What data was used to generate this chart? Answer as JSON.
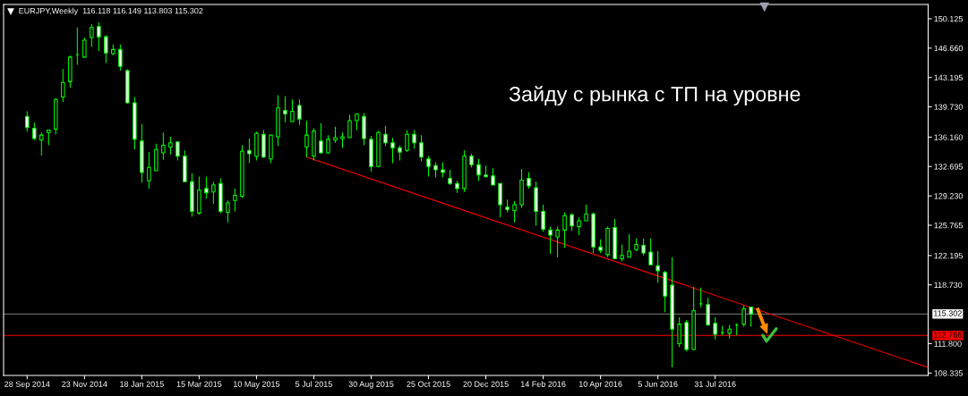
{
  "chart_data": {
    "type": "candlestick",
    "title": "EURJPY,Weekly  116.118 116.149 113.803 115.302",
    "annotations": [
      "Зайду с рынка с ТП на уровне"
    ],
    "x": [
      "2014-09-28",
      "2014-10-05",
      "2014-10-12",
      "2014-10-19",
      "2014-10-26",
      "2014-11-02",
      "2014-11-09",
      "2014-11-16",
      "2014-11-23",
      "2014-11-30",
      "2014-12-07",
      "2014-12-14",
      "2014-12-21",
      "2014-12-28",
      "2015-01-04",
      "2015-01-11",
      "2015-01-18",
      "2015-01-25",
      "2015-02-01",
      "2015-02-08",
      "2015-02-15",
      "2015-02-22",
      "2015-03-01",
      "2015-03-08",
      "2015-03-15",
      "2015-03-22",
      "2015-03-29",
      "2015-04-05",
      "2015-04-12",
      "2015-04-19",
      "2015-04-26",
      "2015-05-03",
      "2015-05-10",
      "2015-05-17",
      "2015-05-24",
      "2015-05-31",
      "2015-06-07",
      "2015-06-14",
      "2015-06-21",
      "2015-06-28",
      "2015-07-05",
      "2015-07-12",
      "2015-07-19",
      "2015-07-26",
      "2015-08-02",
      "2015-08-09",
      "2015-08-16",
      "2015-08-23",
      "2015-08-30",
      "2015-09-06",
      "2015-09-13",
      "2015-09-20",
      "2015-09-27",
      "2015-10-04",
      "2015-10-11",
      "2015-10-18",
      "2015-10-25",
      "2015-11-01",
      "2015-11-08",
      "2015-11-15",
      "2015-11-22",
      "2015-11-29",
      "2015-12-06",
      "2015-12-13",
      "2015-12-20",
      "2015-12-27",
      "2016-01-03",
      "2016-01-10",
      "2016-01-17",
      "2016-01-24",
      "2016-01-31",
      "2016-02-07",
      "2016-02-14",
      "2016-02-21",
      "2016-02-28",
      "2016-03-06",
      "2016-03-13",
      "2016-03-20",
      "2016-03-27",
      "2016-04-03",
      "2016-04-10",
      "2016-04-17",
      "2016-04-24",
      "2016-05-01",
      "2016-05-08",
      "2016-05-15",
      "2016-05-22",
      "2016-05-29",
      "2016-06-05",
      "2016-06-12",
      "2016-06-19",
      "2016-06-26",
      "2016-07-03",
      "2016-07-10",
      "2016-07-17",
      "2016-07-24",
      "2016-07-31",
      "2016-08-07",
      "2016-08-14",
      "2016-08-21",
      "2016-08-28",
      "2016-09-04"
    ],
    "ohlc": [
      [
        138.6,
        139.2,
        136.8,
        137.3
      ],
      [
        137.2,
        137.9,
        135.8,
        136.0
      ],
      [
        135.8,
        136.7,
        134.0,
        136.4
      ],
      [
        136.7,
        137.0,
        135.2,
        137.0
      ],
      [
        137.1,
        140.8,
        136.5,
        140.6
      ],
      [
        140.9,
        144.2,
        140.3,
        142.6
      ],
      [
        142.7,
        145.8,
        142.0,
        145.6
      ],
      [
        145.9,
        149.1,
        144.7,
        145.9
      ],
      [
        145.6,
        147.9,
        145.5,
        147.6
      ],
      [
        147.9,
        149.5,
        146.8,
        149.1
      ],
      [
        149.2,
        149.7,
        146.3,
        148.0
      ],
      [
        148.0,
        148.2,
        144.9,
        146.1
      ],
      [
        146.0,
        147.1,
        145.8,
        146.5
      ],
      [
        146.5,
        147.1,
        144.0,
        144.5
      ],
      [
        144.0,
        144.2,
        140.1,
        140.2
      ],
      [
        140.2,
        140.9,
        134.7,
        135.9
      ],
      [
        135.7,
        137.7,
        130.8,
        132.0
      ],
      [
        131.0,
        134.4,
        130.1,
        132.6
      ],
      [
        132.2,
        135.4,
        132.2,
        134.7
      ],
      [
        134.3,
        136.7,
        133.5,
        135.2
      ],
      [
        135.0,
        136.2,
        134.1,
        135.5
      ],
      [
        135.6,
        135.6,
        133.4,
        133.9
      ],
      [
        133.9,
        134.6,
        130.9,
        130.9
      ],
      [
        130.9,
        131.9,
        126.8,
        127.4
      ],
      [
        127.2,
        131.5,
        127.0,
        129.9
      ],
      [
        130.1,
        131.5,
        128.9,
        129.6
      ],
      [
        129.7,
        130.9,
        128.3,
        130.5
      ],
      [
        130.7,
        131.3,
        127.2,
        127.4
      ],
      [
        127.3,
        128.7,
        126.1,
        128.4
      ],
      [
        128.7,
        130.1,
        127.4,
        129.3
      ],
      [
        129.2,
        135.2,
        129.0,
        134.5
      ],
      [
        134.6,
        136.0,
        133.1,
        134.2
      ],
      [
        133.9,
        136.8,
        133.4,
        136.6
      ],
      [
        136.5,
        137.0,
        133.7,
        133.8
      ],
      [
        133.6,
        136.4,
        133.1,
        136.4
      ],
      [
        136.2,
        141.1,
        135.1,
        139.6
      ],
      [
        139.3,
        141.0,
        137.9,
        138.9
      ],
      [
        138.0,
        140.6,
        138.0,
        139.2
      ],
      [
        139.9,
        140.6,
        137.6,
        138.3
      ],
      [
        135.0,
        138.1,
        133.8,
        136.4
      ],
      [
        133.9,
        137.2,
        133.4,
        136.9
      ],
      [
        135.7,
        137.8,
        134.2,
        134.3
      ],
      [
        134.3,
        136.4,
        134.2,
        135.9
      ],
      [
        135.8,
        137.4,
        135.5,
        136.1
      ],
      [
        136.0,
        136.7,
        134.9,
        136.2
      ],
      [
        136.1,
        138.8,
        136.1,
        138.1
      ],
      [
        138.1,
        138.9,
        137.0,
        138.9
      ],
      [
        138.6,
        139.0,
        135.2,
        136.0
      ],
      [
        135.9,
        136.3,
        132.1,
        132.7
      ],
      [
        132.7,
        136.9,
        132.6,
        136.7
      ],
      [
        136.5,
        137.5,
        135.1,
        135.5
      ],
      [
        135.5,
        136.1,
        133.1,
        134.9
      ],
      [
        134.9,
        135.2,
        133.4,
        134.4
      ],
      [
        134.6,
        137.0,
        134.4,
        136.5
      ],
      [
        136.5,
        137.0,
        134.8,
        135.5
      ],
      [
        135.5,
        136.4,
        133.3,
        133.8
      ],
      [
        133.6,
        133.9,
        131.5,
        132.7
      ],
      [
        132.8,
        133.2,
        131.4,
        132.3
      ],
      [
        132.3,
        133.2,
        131.4,
        132.0
      ],
      [
        131.3,
        132.3,
        130.5,
        130.7
      ],
      [
        130.7,
        131.0,
        129.6,
        130.1
      ],
      [
        130.1,
        134.6,
        129.7,
        133.9
      ],
      [
        133.9,
        134.2,
        132.6,
        132.9
      ],
      [
        132.9,
        133.6,
        131.0,
        131.7
      ],
      [
        131.7,
        132.8,
        131.5,
        131.5
      ],
      [
        131.6,
        132.5,
        130.5,
        130.5
      ],
      [
        130.7,
        130.7,
        126.7,
        128.2
      ],
      [
        127.9,
        128.8,
        127.3,
        127.6
      ],
      [
        127.5,
        128.6,
        126.1,
        128.2
      ],
      [
        128.2,
        132.4,
        127.8,
        131.1
      ],
      [
        131.3,
        132.0,
        130.1,
        130.4
      ],
      [
        130.2,
        130.9,
        125.7,
        127.4
      ],
      [
        127.4,
        128.2,
        125.0,
        125.3
      ],
      [
        125.2,
        125.6,
        122.4,
        124.6
      ],
      [
        124.4,
        125.6,
        122.0,
        125.2
      ],
      [
        125.2,
        127.3,
        123.1,
        126.9
      ],
      [
        127.0,
        127.2,
        125.1,
        125.7
      ],
      [
        125.6,
        126.7,
        124.6,
        126.3
      ],
      [
        126.3,
        128.2,
        126.3,
        127.1
      ],
      [
        127.1,
        127.3,
        122.5,
        123.2
      ],
      [
        123.2,
        124.1,
        122.5,
        122.8
      ],
      [
        122.3,
        125.6,
        122.0,
        125.4
      ],
      [
        125.5,
        126.5,
        121.8,
        121.8
      ],
      [
        121.8,
        123.5,
        121.5,
        122.2
      ],
      [
        122.0,
        124.7,
        122.0,
        122.7
      ],
      [
        122.9,
        124.2,
        122.7,
        123.5
      ],
      [
        123.4,
        124.2,
        122.2,
        122.5
      ],
      [
        122.6,
        124.2,
        121.1,
        121.1
      ],
      [
        121.0,
        122.7,
        119.0,
        120.4
      ],
      [
        120.2,
        120.4,
        115.5,
        117.4
      ],
      [
        118.7,
        122.0,
        109.0,
        113.5
      ],
      [
        111.8,
        114.9,
        111.4,
        114.1
      ],
      [
        114.3,
        114.6,
        110.9,
        111.1
      ],
      [
        111.1,
        118.5,
        111.0,
        115.7
      ],
      [
        116.5,
        118.4,
        116.1,
        116.5
      ],
      [
        116.4,
        117.2,
        113.9,
        114.0
      ],
      [
        114.2,
        114.9,
        112.3,
        112.9
      ],
      [
        113.1,
        113.9,
        112.8,
        113.1
      ],
      [
        113.0,
        114.0,
        112.4,
        113.5
      ],
      [
        114.0,
        114.2,
        112.8,
        114.0
      ],
      [
        114.1,
        116.3,
        113.8,
        115.9
      ],
      [
        116.118,
        116.149,
        113.803,
        115.302
      ]
    ],
    "color": "#00ff00",
    "colors": [
      "#ffffff",
      "#ffffff",
      "#000000",
      "#000000",
      "#000000",
      "#000000",
      "#000000",
      "#00ff00",
      "#000000",
      "#000000",
      "#ffffff",
      "#ffffff",
      "#000000",
      "#ffffff",
      "#ffffff",
      "#ffffff",
      "#ffffff",
      "#000000",
      "#000000",
      "#000000",
      "#000000",
      "#ffffff",
      "#ffffff",
      "#ffffff",
      "#000000",
      "#ffffff",
      "#000000",
      "#ffffff",
      "#000000",
      "#000000",
      "#000000",
      "#ffffff",
      "#000000",
      "#ffffff",
      "#000000",
      "#000000",
      "#ffffff",
      "#000000",
      "#ffffff",
      "#000000",
      "#000000",
      "#ffffff",
      "#000000",
      "#000000",
      "#000000",
      "#000000",
      "#000000",
      "#ffffff",
      "#ffffff",
      "#000000",
      "#ffffff",
      "#ffffff",
      "#ffffff",
      "#000000",
      "#ffffff",
      "#ffffff",
      "#ffffff",
      "#ffffff",
      "#ffffff",
      "#ffffff",
      "#ffffff",
      "#000000",
      "#ffffff",
      "#ffffff",
      "#ffffff",
      "#ffffff",
      "#ffffff",
      "#ffffff",
      "#000000",
      "#000000",
      "#ffffff",
      "#ffffff",
      "#ffffff",
      "#ffffff",
      "#000000",
      "#000000",
      "#ffffff",
      "#000000",
      "#000000",
      "#ffffff",
      "#ffffff",
      "#000000",
      "#ffffff",
      "#000000",
      "#000000",
      "#000000",
      "#ffffff",
      "#ffffff",
      "#ffffff",
      "#ffffff",
      "#ffffff",
      "#000000",
      "#ffffff",
      "#000000",
      "#00ff00",
      "#ffffff",
      "#ffffff",
      "#00ff00",
      "#000000",
      "#00ff00",
      "#000000",
      "#ffffff"
    ],
    "series": [
      {
        "type": "line",
        "x": [
          "2015-06-28",
          "2017-02-24"
        ],
        "values": [
          133.8,
          109.0
        ],
        "color": "#ff0000"
      }
    ],
    "ref_lines": [
      {
        "axis": "y",
        "value": 115.302,
        "label": "115.302",
        "color": "#808080"
      },
      {
        "axis": "y",
        "value": 112.766,
        "label": "112.766",
        "color": "#ff0000"
      }
    ],
    "xlim": [
      "2014-09-05",
      "2017-02-24"
    ],
    "xticks": [
      {
        "value": "2014-09-28",
        "label": "28 Sep 2014"
      },
      {
        "value": "2014-11-23",
        "label": "23 Nov 2014"
      },
      {
        "value": "2015-01-18",
        "label": "18 Jan 2015"
      },
      {
        "value": "2015-03-15",
        "label": "15 Mar 2015"
      },
      {
        "value": "2015-05-10",
        "label": "10 May 2015"
      },
      {
        "value": "2015-07-05",
        "label": "5 Jul 2015"
      },
      {
        "value": "2015-08-30",
        "label": "30 Aug 2015"
      },
      {
        "value": "2015-10-25",
        "label": "25 Oct 2015"
      },
      {
        "value": "2015-12-20",
        "label": "20 Dec 2015"
      },
      {
        "value": "2016-02-14",
        "label": "14 Feb 2016"
      },
      {
        "value": "2016-04-10",
        "label": "10 Apr 2016"
      },
      {
        "value": "2016-06-05",
        "label": "5 Jun 2016"
      },
      {
        "value": "2016-07-31",
        "label": "31 Jul 2016"
      }
    ],
    "ylim": [
      108.05,
      151.81
    ],
    "yticks": [
      150.125,
      {
        "value": 146.66,
        "label": "146.660"
      },
      143.195,
      {
        "value": 139.73,
        "label": "139.730"
      },
      {
        "value": 136.16,
        "label": "136.160"
      },
      132.695,
      {
        "value": 129.23,
        "label": "129.230"
      },
      125.765,
      122.195,
      {
        "value": 118.73,
        "label": "118.730"
      },
      {
        "value": 111.8,
        "label": "111.800"
      },
      108.335
    ],
    "grid": false
  }
}
